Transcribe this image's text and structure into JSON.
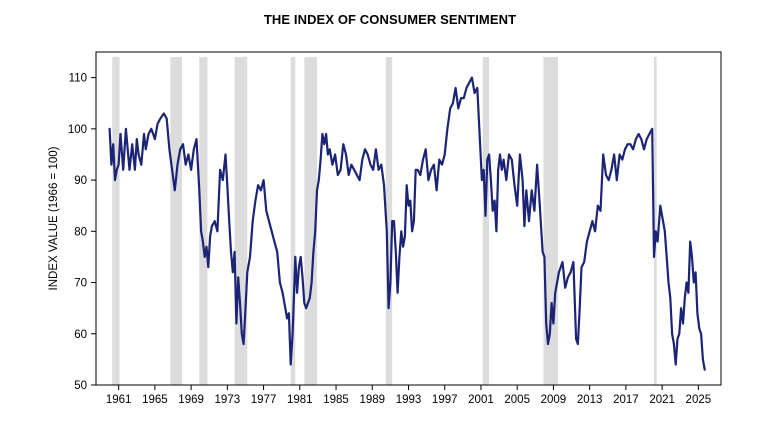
{
  "chart_data": {
    "type": "line",
    "title": "THE INDEX OF CONSUMER SENTIMENT",
    "xlabel": "",
    "ylabel": "INDEX VALUE (1966 = 100)",
    "xlim": [
      1958.5,
      2027.5
    ],
    "ylim": [
      50,
      115
    ],
    "y_ticks": [
      50,
      60,
      70,
      80,
      90,
      100,
      110
    ],
    "x_ticks": [
      "1961",
      "1965",
      "1969",
      "1973",
      "1977",
      "1981",
      "1985",
      "1989",
      "1993",
      "1997",
      "2001",
      "2005",
      "2009",
      "2013",
      "2017",
      "2021",
      "2025"
    ],
    "x_tick_values": [
      1961,
      1965,
      1969,
      1973,
      1977,
      1981,
      1985,
      1989,
      1993,
      1997,
      2001,
      2005,
      2009,
      2013,
      2017,
      2021,
      2025
    ],
    "grid": false,
    "legend": "none",
    "shaded_periods": [
      [
        1960.3,
        1961.1
      ],
      [
        1966.7,
        1968.0
      ],
      [
        1969.9,
        1970.8
      ],
      [
        1973.8,
        1975.2
      ],
      [
        1980.0,
        1980.5
      ],
      [
        1981.5,
        1982.9
      ],
      [
        1990.5,
        1991.2
      ],
      [
        2001.2,
        2001.9
      ],
      [
        2007.9,
        2009.5
      ],
      [
        2020.1,
        2020.4
      ]
    ],
    "series": [
      {
        "x": [
          1960.0,
          1960.2,
          1960.4,
          1960.6,
          1960.8,
          1961.0,
          1961.2,
          1961.5,
          1961.8,
          1962.0,
          1962.2,
          1962.5,
          1962.8,
          1963.0,
          1963.2,
          1963.5,
          1963.8,
          1964.0,
          1964.3,
          1964.6,
          1965.0,
          1965.3,
          1965.6,
          1966.0,
          1966.3,
          1966.6,
          1966.9,
          1967.2,
          1967.5,
          1967.8,
          1968.1,
          1968.4,
          1968.7,
          1969.0,
          1969.3,
          1969.6,
          1969.9,
          1970.1,
          1970.3,
          1970.5,
          1970.7,
          1970.9,
          1971.1,
          1971.3,
          1971.6,
          1971.9,
          1972.2,
          1972.5,
          1972.8,
          1973.0,
          1973.2,
          1973.4,
          1973.6,
          1973.8,
          1974.0,
          1974.2,
          1974.4,
          1974.6,
          1974.8,
          1975.0,
          1975.2,
          1975.5,
          1975.8,
          1976.1,
          1976.4,
          1976.7,
          1977.0,
          1977.3,
          1977.6,
          1977.9,
          1978.2,
          1978.5,
          1978.8,
          1979.1,
          1979.4,
          1979.6,
          1979.8,
          1980.0,
          1980.2,
          1980.35,
          1980.5,
          1980.7,
          1980.9,
          1981.1,
          1981.3,
          1981.5,
          1981.7,
          1981.9,
          1982.1,
          1982.3,
          1982.5,
          1982.7,
          1982.9,
          1983.1,
          1983.3,
          1983.5,
          1983.7,
          1983.9,
          1984.1,
          1984.3,
          1984.6,
          1984.9,
          1985.2,
          1985.5,
          1985.8,
          1986.1,
          1986.4,
          1986.7,
          1987.0,
          1987.3,
          1987.6,
          1987.9,
          1988.2,
          1988.5,
          1988.8,
          1989.1,
          1989.4,
          1989.7,
          1990.0,
          1990.3,
          1990.6,
          1990.8,
          1991.0,
          1991.2,
          1991.4,
          1991.6,
          1991.8,
          1992.0,
          1992.2,
          1992.4,
          1992.6,
          1992.8,
          1993.0,
          1993.2,
          1993.4,
          1993.6,
          1993.8,
          1994.0,
          1994.3,
          1994.6,
          1994.9,
          1995.2,
          1995.5,
          1995.8,
          1996.1,
          1996.4,
          1996.7,
          1997.0,
          1997.3,
          1997.6,
          1997.9,
          1998.2,
          1998.5,
          1998.8,
          1999.1,
          1999.4,
          1999.7,
          2000.0,
          2000.3,
          2000.6,
          2000.9,
          2001.1,
          2001.3,
          2001.5,
          2001.7,
          2001.9,
          2002.1,
          2002.3,
          2002.5,
          2002.7,
          2002.9,
          2003.1,
          2003.3,
          2003.5,
          2003.8,
          2004.1,
          2004.4,
          2004.7,
          2005.0,
          2005.3,
          2005.6,
          2005.8,
          2006.0,
          2006.3,
          2006.6,
          2006.9,
          2007.2,
          2007.5,
          2007.8,
          2008.0,
          2008.2,
          2008.4,
          2008.6,
          2008.8,
          2009.0,
          2009.2,
          2009.4,
          2009.6,
          2009.8,
          2010.0,
          2010.3,
          2010.6,
          2010.9,
          2011.2,
          2011.5,
          2011.7,
          2011.9,
          2012.1,
          2012.4,
          2012.7,
          2013.0,
          2013.3,
          2013.6,
          2013.9,
          2014.2,
          2014.5,
          2014.8,
          2015.1,
          2015.4,
          2015.7,
          2016.0,
          2016.3,
          2016.6,
          2016.9,
          2017.2,
          2017.5,
          2017.8,
          2018.1,
          2018.4,
          2018.7,
          2019.0,
          2019.3,
          2019.6,
          2019.9,
          2020.1,
          2020.3,
          2020.5,
          2020.8,
          2021.1,
          2021.3,
          2021.5,
          2021.7,
          2021.9,
          2022.1,
          2022.3,
          2022.5,
          2022.7,
          2022.9,
          2023.1,
          2023.3,
          2023.5,
          2023.7,
          2023.9,
          2024.1,
          2024.3,
          2024.5,
          2024.7,
          2024.9,
          2025.1,
          2025.3,
          2025.5,
          2025.7
        ],
        "values": [
          100,
          93,
          97,
          90,
          92,
          93,
          99,
          92,
          100,
          96,
          92,
          97,
          92,
          98,
          95,
          93,
          99,
          96,
          99,
          100,
          98,
          101,
          102,
          103,
          102,
          96,
          92,
          88,
          93,
          96,
          97,
          93,
          95,
          92,
          96,
          98,
          88,
          80,
          78,
          75,
          77,
          73,
          79,
          81,
          82,
          80,
          92,
          90,
          95,
          89,
          82,
          76,
          72,
          76,
          62,
          71,
          66,
          60,
          58,
          65,
          72,
          75,
          82,
          86,
          89,
          88,
          90,
          84,
          82,
          80,
          78,
          76,
          70,
          68,
          65,
          63,
          64,
          54,
          60,
          67,
          75,
          68,
          73,
          75,
          71,
          66,
          65,
          66,
          67,
          70,
          76,
          80,
          88,
          90,
          94,
          99,
          97,
          99,
          95,
          96,
          93,
          95,
          91,
          92,
          97,
          95,
          91,
          93,
          92,
          91,
          90,
          94,
          96,
          95,
          93,
          92,
          96,
          92,
          93,
          89,
          80,
          65,
          70,
          82,
          82,
          76,
          68,
          75,
          80,
          77,
          79,
          89,
          85,
          86,
          80,
          82,
          92,
          92,
          91,
          94,
          96,
          90,
          92,
          93,
          88,
          94,
          93,
          95,
          100,
          104,
          105,
          108,
          104,
          106,
          106,
          108,
          109,
          110,
          107,
          108,
          97,
          90,
          92,
          83,
          94,
          95,
          90,
          84,
          86,
          80,
          92,
          95,
          92,
          94,
          90,
          95,
          94,
          89,
          85,
          95,
          90,
          81,
          88,
          82,
          88,
          84,
          93,
          85,
          76,
          75,
          62,
          58,
          60,
          66,
          62,
          68,
          70,
          72,
          73,
          74,
          69,
          71,
          72,
          74,
          59,
          58,
          65,
          73,
          74,
          78,
          80,
          82,
          80,
          85,
          84,
          95,
          91,
          90,
          92,
          95,
          90,
          95,
          94,
          96,
          97,
          97,
          96,
          98,
          99,
          98,
          96,
          98,
          99,
          100,
          75,
          80,
          78,
          85,
          82,
          80,
          75,
          70,
          67,
          60,
          58,
          54,
          59,
          60,
          65,
          62,
          67,
          70,
          68,
          78,
          75,
          70,
          72,
          64,
          61,
          60,
          55,
          53
        ]
      }
    ],
    "colors": {
      "line": "#1c2475",
      "recession_shading": "#dcdcdc",
      "axis": "#000000"
    }
  }
}
